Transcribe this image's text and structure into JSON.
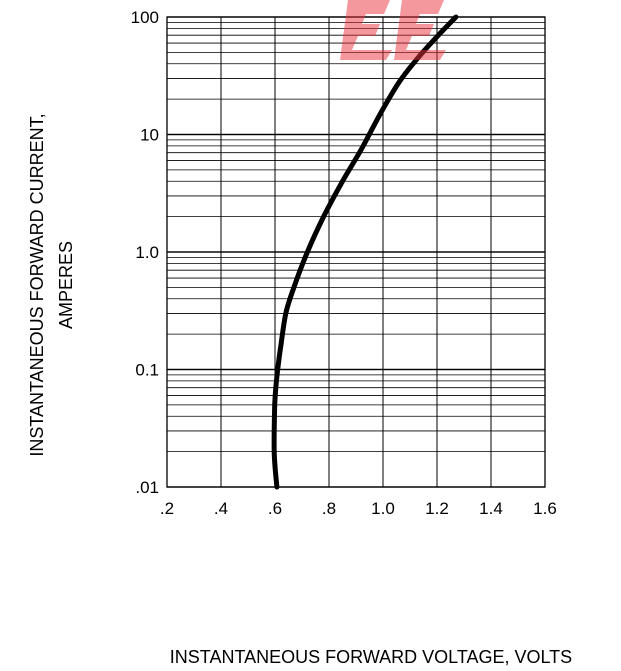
{
  "chart_data": {
    "type": "line",
    "title": "",
    "xlabel": "INSTANTANEOUS FORWARD VOLTAGE,  VOLTS",
    "ylabel": [
      "INSTANTANEOUS FORWARD CURRENT,",
      "AMPERES"
    ],
    "x_scale": "linear",
    "y_scale": "log",
    "xlim": [
      0.2,
      1.6
    ],
    "ylim": [
      0.01,
      100
    ],
    "x_ticks": [
      0.2,
      0.4,
      0.6,
      0.8,
      1.0,
      1.2,
      1.4,
      1.6
    ],
    "x_tick_labels": [
      ".2",
      ".4",
      ".6",
      ".8",
      "1.0",
      "1.2",
      "1.4",
      "1.6"
    ],
    "y_ticks": [
      0.01,
      0.1,
      1,
      10,
      100
    ],
    "y_tick_labels": [
      ".01",
      "0.1",
      "1.0",
      "10",
      "100"
    ],
    "grid": true,
    "legend": "none",
    "series": [
      {
        "color": "#000000",
        "x": [
          0.607,
          0.6,
          0.597,
          0.597,
          0.599,
          0.603,
          0.61,
          0.62,
          0.64,
          0.67,
          0.72,
          0.78,
          0.85,
          0.92,
          0.99,
          1.06,
          1.13,
          1.2,
          1.27
        ],
        "y": [
          0.01,
          0.015,
          0.02,
          0.03,
          0.05,
          0.07,
          0.1,
          0.15,
          0.3,
          0.5,
          1.0,
          2.0,
          4.0,
          7.5,
          15,
          28,
          45,
          68,
          100
        ]
      }
    ]
  },
  "watermark": {
    "color": "#e9323c",
    "opacity": 0.5
  }
}
